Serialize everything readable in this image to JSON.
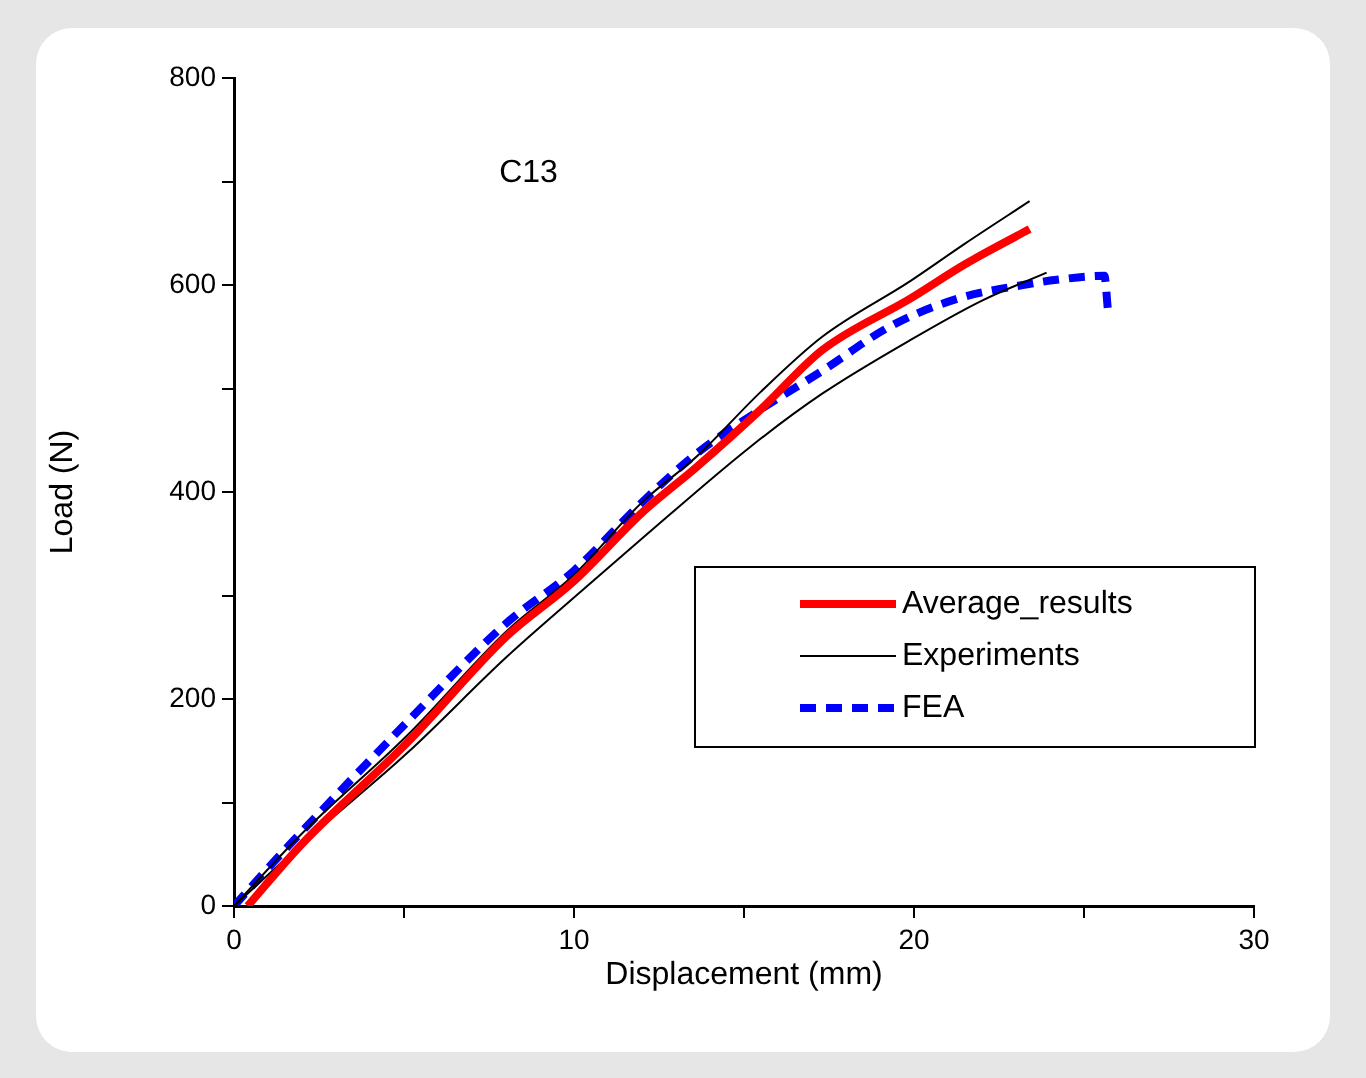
{
  "chart_data": {
    "type": "line",
    "xlabel": "Displacement (mm)",
    "ylabel": "Load (N)",
    "annotations": [
      "C13"
    ],
    "xlim": [
      0,
      30
    ],
    "ylim": [
      0,
      800
    ],
    "xticks": [
      0,
      {
        "value": 5,
        "label": null
      },
      10,
      {
        "value": 15,
        "label": null
      },
      20,
      {
        "value": 25,
        "label": null
      },
      30
    ],
    "yticks": [
      0,
      {
        "value": 100,
        "label": null
      },
      200,
      {
        "value": 300,
        "label": null
      },
      400,
      {
        "value": 500,
        "label": null
      },
      600,
      {
        "value": 700,
        "label": null
      },
      800
    ],
    "grid": false,
    "legend": "bottom right",
    "marker": "none",
    "series": [
      {
        "name": "Average_results",
        "color": "#ff0000",
        "line_style": "solid",
        "x": [
          0.4,
          2,
          5.1,
          8,
          10,
          12,
          13.6,
          15.5,
          17.3,
          19.9,
          21.5,
          23.4
        ],
        "values": [
          0,
          60,
          158,
          260,
          314,
          380,
          424,
          480,
          537,
          587,
          620,
          654
        ]
      },
      {
        "name": "Experiments",
        "color": "#000000",
        "line_style": "solid",
        "x": [
          0,
          2,
          5.1,
          8,
          10,
          12,
          13.6,
          15.5,
          17.3,
          19.9,
          21.5,
          23.4
        ],
        "values": [
          0,
          70,
          165,
          265,
          320,
          390,
          434,
          497,
          550,
          604,
          640,
          681
        ]
      },
      {
        "color": "#000000",
        "line_style": "solid",
        "x": [
          0,
          2,
          5.1,
          8,
          10,
          12,
          15.2,
          17.3,
          19.9,
          22,
          23.9
        ],
        "values": [
          0,
          60,
          148,
          240,
          298,
          355,
          444,
          495,
          547,
          585,
          612
        ]
      },
      {
        "name": "FEA",
        "color": "#0000ff",
        "line_style": "dashed",
        "x": [
          0,
          1.6,
          5.1,
          8,
          10,
          12,
          13.6,
          15.5,
          17.3,
          19.3,
          21.3,
          23.2,
          24.2,
          25.6,
          25.7
        ],
        "values": [
          0,
          58,
          178,
          273,
          324,
          390,
          437,
          480,
          517,
          560,
          587,
          600,
          605,
          609,
          577
        ]
      }
    ]
  }
}
